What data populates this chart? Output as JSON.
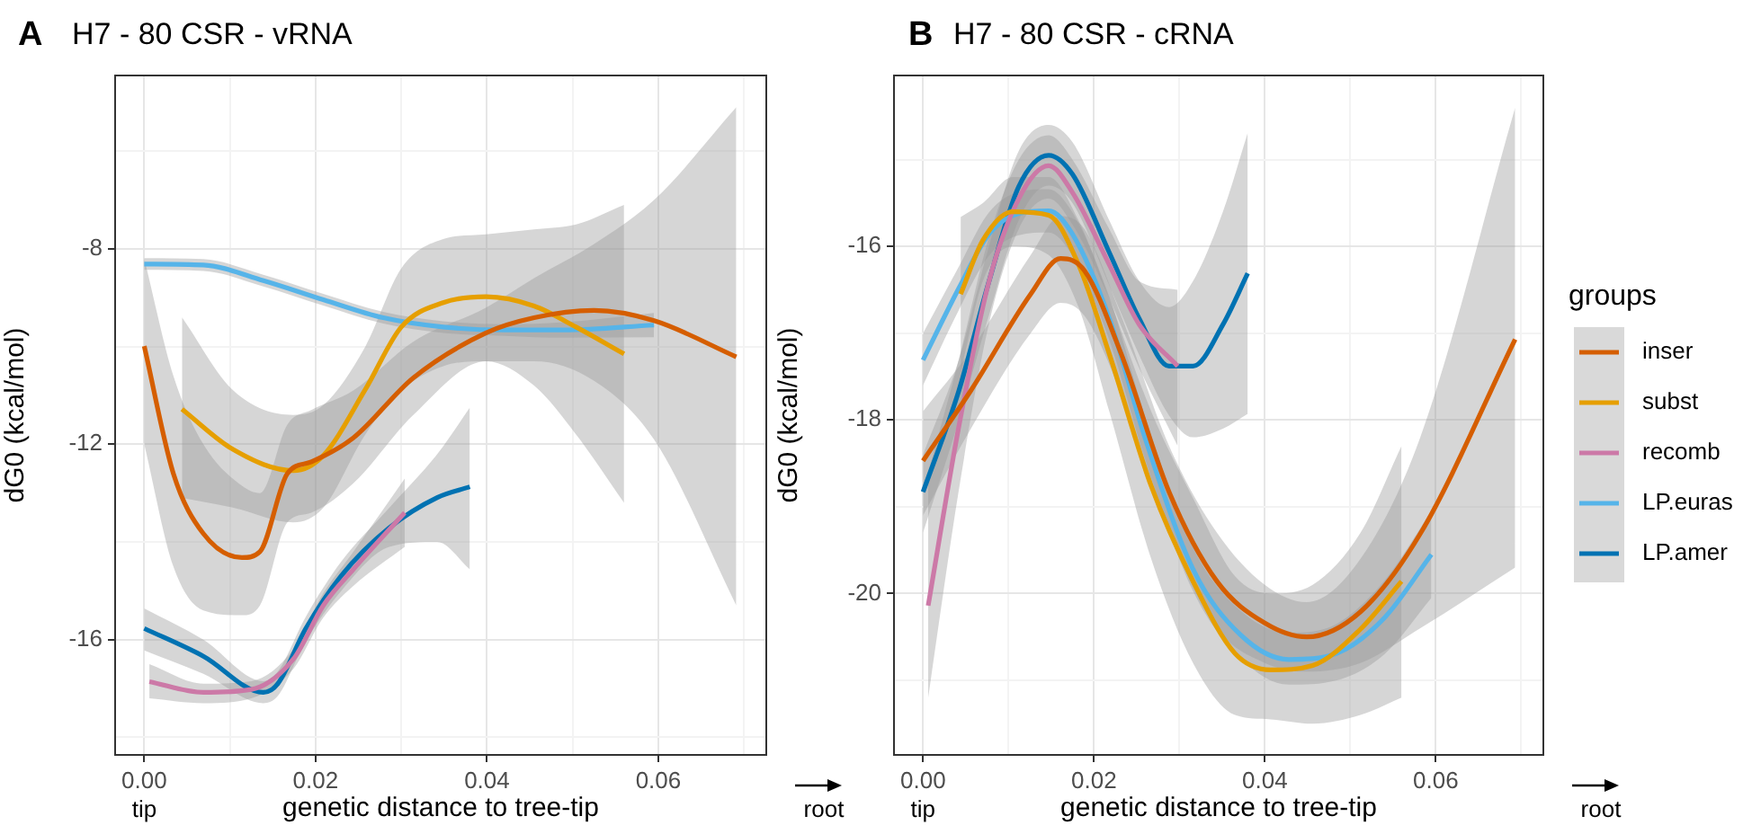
{
  "chart_data": [
    {
      "type": "line",
      "title": "H7 - 80 CSR - vRNA",
      "xlabel": "genetic distance to tree-tip",
      "ylabel": "dG0 (kcal/mol)",
      "annotations": [
        "A",
        "tip",
        "root"
      ],
      "xlim": [
        -0.0034,
        0.0726
      ],
      "ylim": [
        -18.36,
        -4.45
      ],
      "xticks": [
        {
          "value": 0,
          "label": "0.00"
        },
        {
          "value": 0.01,
          "label": null
        },
        {
          "value": 0.02,
          "label": "0.02"
        },
        {
          "value": 0.03,
          "label": null
        },
        {
          "value": 0.04,
          "label": "0.04"
        },
        {
          "value": 0.05,
          "label": null
        },
        {
          "value": 0.06,
          "label": "0.06"
        },
        {
          "value": 0.07,
          "label": null
        }
      ],
      "yticks": [
        {
          "value": -18,
          "label": null
        },
        -16,
        {
          "value": -14,
          "label": null
        },
        -12,
        {
          "value": -10,
          "label": null
        },
        -8,
        {
          "value": -6,
          "label": null
        }
      ],
      "grid": true,
      "legend": false,
      "series": [
        {
          "color": "#d55e00",
          "x": [
            0,
            0.0034,
            0.0069,
            0.0114,
            0.0135,
            0.0167,
            0.0195,
            0.0244,
            0.0314,
            0.0399,
            0.0455,
            0.0525,
            0.0595,
            0.0691
          ],
          "values": [
            -9.99,
            -12.6,
            -13.83,
            -14.32,
            -14.2,
            -12.6,
            -12.36,
            -11.87,
            -10.64,
            -9.72,
            -9.41,
            -9.26,
            -9.47,
            -10.21
          ],
          "upper": [
            -8.2,
            -10.6,
            -12.0,
            -12.85,
            -13.0,
            -11.6,
            -11.3,
            -10.9,
            -9.9,
            -9.2,
            -8.6,
            -7.9,
            -7.0,
            -5.1
          ],
          "lower": [
            -12.0,
            -14.5,
            -15.4,
            -15.5,
            -15.3,
            -13.6,
            -13.4,
            -12.8,
            -11.4,
            -10.3,
            -10.3,
            -10.7,
            -11.9,
            -15.3
          ]
        },
        {
          "color": "#e69f00",
          "x": [
            0.0044,
            0.0104,
            0.0174,
            0.0209,
            0.0258,
            0.03,
            0.0349,
            0.0399,
            0.0455,
            0.0504,
            0.056
          ],
          "values": [
            -11.28,
            -12.11,
            -12.54,
            -12.23,
            -10.88,
            -9.6,
            -9.1,
            -8.98,
            -9.17,
            -9.6,
            -10.15
          ],
          "upper": [
            -9.4,
            -10.9,
            -11.4,
            -11.2,
            -10.0,
            -8.4,
            -7.8,
            -7.7,
            -7.6,
            -7.5,
            -7.1
          ],
          "lower": [
            -13.1,
            -13.3,
            -13.6,
            -13.3,
            -11.8,
            -10.9,
            -10.4,
            -10.3,
            -10.8,
            -11.8,
            -13.2
          ]
        },
        {
          "color": "#cc79a7",
          "x": [
            0.0006,
            0.0069,
            0.0125,
            0.0174,
            0.0209,
            0.0244,
            0.0304
          ],
          "values": [
            -16.86,
            -17.08,
            -17.02,
            -16.4,
            -15.3,
            -14.56,
            -13.4
          ],
          "upper": [
            -16.5,
            -16.9,
            -16.85,
            -16.2,
            -15.05,
            -14.2,
            -12.7
          ],
          "lower": [
            -17.2,
            -17.3,
            -17.2,
            -16.6,
            -15.55,
            -14.9,
            -14.1
          ]
        },
        {
          "color": "#56b4e9",
          "x": [
            0,
            0.0069,
            0.0139,
            0.0209,
            0.0279,
            0.0349,
            0.042,
            0.049,
            0.0595
          ],
          "values": [
            -8.31,
            -8.33,
            -8.65,
            -9.04,
            -9.41,
            -9.6,
            -9.66,
            -9.66,
            -9.56
          ],
          "upper": [
            -8.19,
            -8.21,
            -8.53,
            -8.92,
            -9.29,
            -9.48,
            -9.54,
            -9.5,
            -9.31
          ],
          "lower": [
            -8.43,
            -8.45,
            -8.77,
            -9.16,
            -9.53,
            -9.72,
            -9.78,
            -9.82,
            -9.81
          ]
        },
        {
          "color": "#0072b2",
          "x": [
            0,
            0.0069,
            0.0139,
            0.0156,
            0.0188,
            0.023,
            0.0286,
            0.0342,
            0.038
          ],
          "values": [
            -15.77,
            -16.34,
            -17.08,
            -16.9,
            -15.79,
            -14.69,
            -13.71,
            -13.09,
            -12.87
          ],
          "upper": [
            -15.36,
            -16.0,
            -16.85,
            -16.65,
            -15.55,
            -14.4,
            -13.3,
            -12.2,
            -11.25
          ],
          "lower": [
            -16.22,
            -16.7,
            -17.3,
            -17.15,
            -16.05,
            -15.0,
            -14.1,
            -14.0,
            -14.56
          ]
        }
      ]
    },
    {
      "type": "line",
      "title": "H7 - 80 CSR - cRNA",
      "xlabel": "genetic distance to tree-tip",
      "ylabel": "dG0 (kcal/mol)",
      "legend_title": "groups",
      "annotations": [
        "B",
        "tip",
        "root"
      ],
      "xlim": [
        -0.0034,
        0.0726
      ],
      "ylim": [
        -21.86,
        -14.03
      ],
      "xticks": [
        {
          "value": 0,
          "label": "0.00"
        },
        {
          "value": 0.01,
          "label": null
        },
        {
          "value": 0.02,
          "label": "0.02"
        },
        {
          "value": 0.03,
          "label": null
        },
        {
          "value": 0.04,
          "label": "0.04"
        },
        {
          "value": 0.05,
          "label": null
        },
        {
          "value": 0.06,
          "label": "0.06"
        },
        {
          "value": 0.07,
          "label": null
        }
      ],
      "yticks": [
        {
          "value": -21,
          "label": null
        },
        -20,
        {
          "value": -19,
          "label": null
        },
        -18,
        {
          "value": -17,
          "label": null
        },
        -16,
        {
          "value": -15,
          "label": null
        }
      ],
      "grid": true,
      "legend": "right",
      "series": [
        {
          "name": "inser",
          "color": "#d55e00",
          "x": [
            0,
            0.0056,
            0.0126,
            0.0161,
            0.0189,
            0.0232,
            0.0288,
            0.0344,
            0.04,
            0.0449,
            0.0512,
            0.0582,
            0.0693
          ],
          "values": [
            -18.47,
            -17.66,
            -16.55,
            -16.14,
            -16.28,
            -17.24,
            -18.83,
            -19.86,
            -20.34,
            -20.5,
            -20.21,
            -19.31,
            -17.07
          ],
          "upper": [
            -17.9,
            -17.2,
            -16.1,
            -15.65,
            -15.8,
            -16.8,
            -18.3,
            -19.3,
            -19.9,
            -20.1,
            -19.6,
            -18.2,
            -14.4
          ],
          "lower": [
            -19.1,
            -18.1,
            -17.0,
            -16.65,
            -16.8,
            -17.7,
            -19.3,
            -20.4,
            -20.8,
            -20.9,
            -20.8,
            -20.4,
            -19.7
          ]
        },
        {
          "name": "subst",
          "color": "#e69f00",
          "x": [
            0.0044,
            0.007,
            0.0105,
            0.0147,
            0.0182,
            0.0218,
            0.0267,
            0.0316,
            0.0365,
            0.0407,
            0.0456,
            0.0512,
            0.056
          ],
          "values": [
            -16.55,
            -15.93,
            -15.6,
            -15.64,
            -16.21,
            -17.24,
            -18.76,
            -19.86,
            -20.69,
            -20.88,
            -20.83,
            -20.41,
            -19.86
          ],
          "upper": [
            -15.66,
            -15.5,
            -15.2,
            -15.2,
            -15.7,
            -16.6,
            -17.9,
            -18.9,
            -19.8,
            -20.0,
            -19.9,
            -19.3,
            -18.3
          ],
          "lower": [
            -17.45,
            -16.4,
            -16.0,
            -16.1,
            -16.7,
            -17.9,
            -19.6,
            -20.8,
            -21.4,
            -21.45,
            -21.5,
            -21.4,
            -21.2
          ]
        },
        {
          "name": "recomb",
          "color": "#cc79a7",
          "x": [
            0.0006,
            0.0042,
            0.0077,
            0.0112,
            0.0147,
            0.0175,
            0.0218,
            0.0253,
            0.0298
          ],
          "values": [
            -20.14,
            -18.07,
            -16.41,
            -15.45,
            -15.07,
            -15.38,
            -16.21,
            -16.9,
            -17.38
          ],
          "upper": [
            -18.6,
            -17.3,
            -15.9,
            -15.0,
            -14.72,
            -15.0,
            -15.8,
            -16.4,
            -16.5
          ],
          "lower": [
            -21.2,
            -18.8,
            -16.9,
            -15.8,
            -15.45,
            -15.75,
            -16.6,
            -17.4,
            -18.3
          ]
        },
        {
          "name": "LP.euras",
          "color": "#56b4e9",
          "x": [
            0,
            0.0042,
            0.0077,
            0.0112,
            0.0147,
            0.0175,
            0.0218,
            0.026,
            0.0316,
            0.0372,
            0.0428,
            0.0484,
            0.054,
            0.0595
          ],
          "values": [
            -17.31,
            -16.48,
            -15.86,
            -15.62,
            -15.59,
            -15.86,
            -16.83,
            -18.21,
            -19.72,
            -20.48,
            -20.76,
            -20.69,
            -20.28,
            -19.55
          ],
          "upper": [
            -17.0,
            -16.23,
            -15.61,
            -15.37,
            -15.34,
            -15.61,
            -16.58,
            -17.96,
            -19.47,
            -20.2,
            -20.45,
            -20.35,
            -19.85,
            -19.05
          ],
          "lower": [
            -17.6,
            -16.73,
            -16.11,
            -15.87,
            -15.84,
            -16.11,
            -17.08,
            -18.46,
            -19.97,
            -20.75,
            -21.05,
            -21.0,
            -20.7,
            -20.05
          ]
        },
        {
          "name": "LP.amer",
          "color": "#0072b2",
          "x": [
            0,
            0.0042,
            0.0077,
            0.0112,
            0.0147,
            0.0175,
            0.0218,
            0.0253,
            0.0288,
            0.0316,
            0.0351,
            0.038
          ],
          "values": [
            -18.83,
            -17.66,
            -16.41,
            -15.31,
            -14.95,
            -15.17,
            -16.07,
            -16.83,
            -17.38,
            -17.38,
            -16.9,
            -16.31
          ],
          "upper": [
            -18.4,
            -17.3,
            -16.0,
            -14.9,
            -14.6,
            -14.8,
            -15.7,
            -16.4,
            -16.7,
            -16.4,
            -15.6,
            -14.69
          ],
          "lower": [
            -19.3,
            -18.0,
            -16.8,
            -15.7,
            -15.3,
            -15.5,
            -16.45,
            -17.25,
            -17.95,
            -18.2,
            -18.1,
            -17.93
          ]
        }
      ]
    }
  ]
}
